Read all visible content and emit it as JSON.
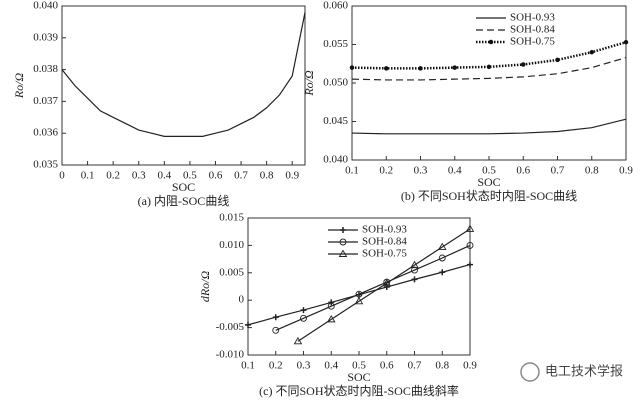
{
  "chart_data": [
    {
      "type": "line",
      "xlabel": "SOC",
      "ylabel": "Ro/Ω",
      "caption": "(a) 内阻-SOC曲线",
      "xlim": [
        0,
        0.95
      ],
      "xticks": [
        0,
        0.1,
        0.2,
        0.3,
        0.4,
        0.5,
        0.6,
        0.7,
        0.8,
        0.9
      ],
      "ylim": [
        0.035,
        0.04
      ],
      "yticks": [
        0.035,
        0.036,
        0.037,
        0.038,
        0.039,
        {
          "value": 0.04,
          "label": "0.040"
        }
      ],
      "series": [
        {
          "color": "#222222",
          "x": [
            0,
            0.05,
            0.1,
            0.15,
            0.2,
            0.25,
            0.3,
            0.35,
            0.4,
            0.45,
            0.5,
            0.55,
            0.6,
            0.65,
            0.7,
            0.75,
            0.8,
            0.85,
            0.9,
            0.95
          ],
          "values": [
            0.038,
            0.0375,
            0.0371,
            0.0367,
            0.0365,
            0.0363,
            0.0361,
            0.036,
            0.0359,
            0.0359,
            0.0359,
            0.0359,
            0.036,
            0.0361,
            0.0363,
            0.0365,
            0.0368,
            0.0372,
            0.0378,
            0.0398
          ]
        }
      ]
    },
    {
      "type": "line",
      "xlabel": "SOC",
      "ylabel": "Ro/Ω",
      "caption": "(b) 不同SOH状态时内阻-SOC曲线",
      "legend": "upper right",
      "xlim": [
        0.1,
        0.9
      ],
      "xticks": [
        0.1,
        0.2,
        0.3,
        0.4,
        0.5,
        0.6,
        0.7,
        0.8,
        0.9
      ],
      "ylim": [
        0.04,
        0.06
      ],
      "yticks": [
        {
          "value": 0.04,
          "label": "0.040"
        },
        0.045,
        {
          "value": 0.05,
          "label": "0.050"
        },
        0.055,
        {
          "value": 0.06,
          "label": "0.060"
        }
      ],
      "series": [
        {
          "name": "SOH-0.93",
          "color": "#222222",
          "dash": "none",
          "marker": "none",
          "x": [
            0.1,
            0.2,
            0.3,
            0.4,
            0.5,
            0.6,
            0.7,
            0.8,
            0.9
          ],
          "values": [
            0.0435,
            0.0434,
            0.0434,
            0.0434,
            0.0434,
            0.0435,
            0.0437,
            0.0442,
            0.0453
          ]
        },
        {
          "name": "SOH-0.84",
          "color": "#222222",
          "dash": "7,4",
          "marker": "none",
          "x": [
            0.1,
            0.2,
            0.3,
            0.4,
            0.5,
            0.6,
            0.7,
            0.8,
            0.9
          ],
          "values": [
            0.0505,
            0.0504,
            0.0504,
            0.0505,
            0.0506,
            0.0508,
            0.0512,
            0.052,
            0.0533
          ]
        },
        {
          "name": "SOH-0.75",
          "color": "#111111",
          "dash": "1.5,1.5",
          "marker": "dot",
          "x": [
            0.1,
            0.2,
            0.3,
            0.4,
            0.5,
            0.6,
            0.7,
            0.8,
            0.9
          ],
          "values": [
            0.052,
            0.0519,
            0.0519,
            0.052,
            0.0521,
            0.0524,
            0.053,
            0.054,
            0.0553
          ]
        }
      ]
    },
    {
      "type": "line",
      "xlabel": "SOC",
      "ylabel": "dRo/Ω",
      "caption": "(c) 不同SOH状态时内阻-SOC曲线斜率",
      "legend": "upper left",
      "xlim": [
        0.1,
        0.9
      ],
      "xticks": [
        0.1,
        0.2,
        0.3,
        0.4,
        0.5,
        0.6,
        0.7,
        0.8,
        0.9
      ],
      "ylim": [
        -0.01,
        0.015
      ],
      "yticks": [
        {
          "value": -0.01,
          "label": "-0.010"
        },
        -0.005,
        0,
        0.005,
        {
          "value": 0.01,
          "label": "0.010"
        },
        0.015
      ],
      "series": [
        {
          "name": "SOH-0.93",
          "color": "#222222",
          "dash": "none",
          "marker": "plus",
          "x": [
            0.1,
            0.2,
            0.3,
            0.4,
            0.5,
            0.6,
            0.7,
            0.8,
            0.9
          ],
          "values": [
            -0.0045,
            -0.0031,
            -0.0018,
            -0.0004,
            0.001,
            0.0024,
            0.0038,
            0.0051,
            0.0065
          ]
        },
        {
          "name": "SOH-0.84",
          "color": "#222222",
          "dash": "none",
          "marker": "circle",
          "x": [
            0.2,
            0.3,
            0.4,
            0.5,
            0.6,
            0.7,
            0.8,
            0.9
          ],
          "values": [
            -0.0055,
            -0.0033,
            -0.0011,
            0.0011,
            0.0033,
            0.0055,
            0.0077,
            0.01
          ]
        },
        {
          "name": "SOH-0.75",
          "color": "#222222",
          "dash": "none",
          "marker": "triangle",
          "x": [
            0.28,
            0.4,
            0.5,
            0.6,
            0.7,
            0.8,
            0.9
          ],
          "values": [
            -0.0075,
            -0.0035,
            -0.0002,
            0.0031,
            0.0064,
            0.0097,
            0.013
          ]
        }
      ]
    }
  ],
  "watermark": "电工技术学报"
}
